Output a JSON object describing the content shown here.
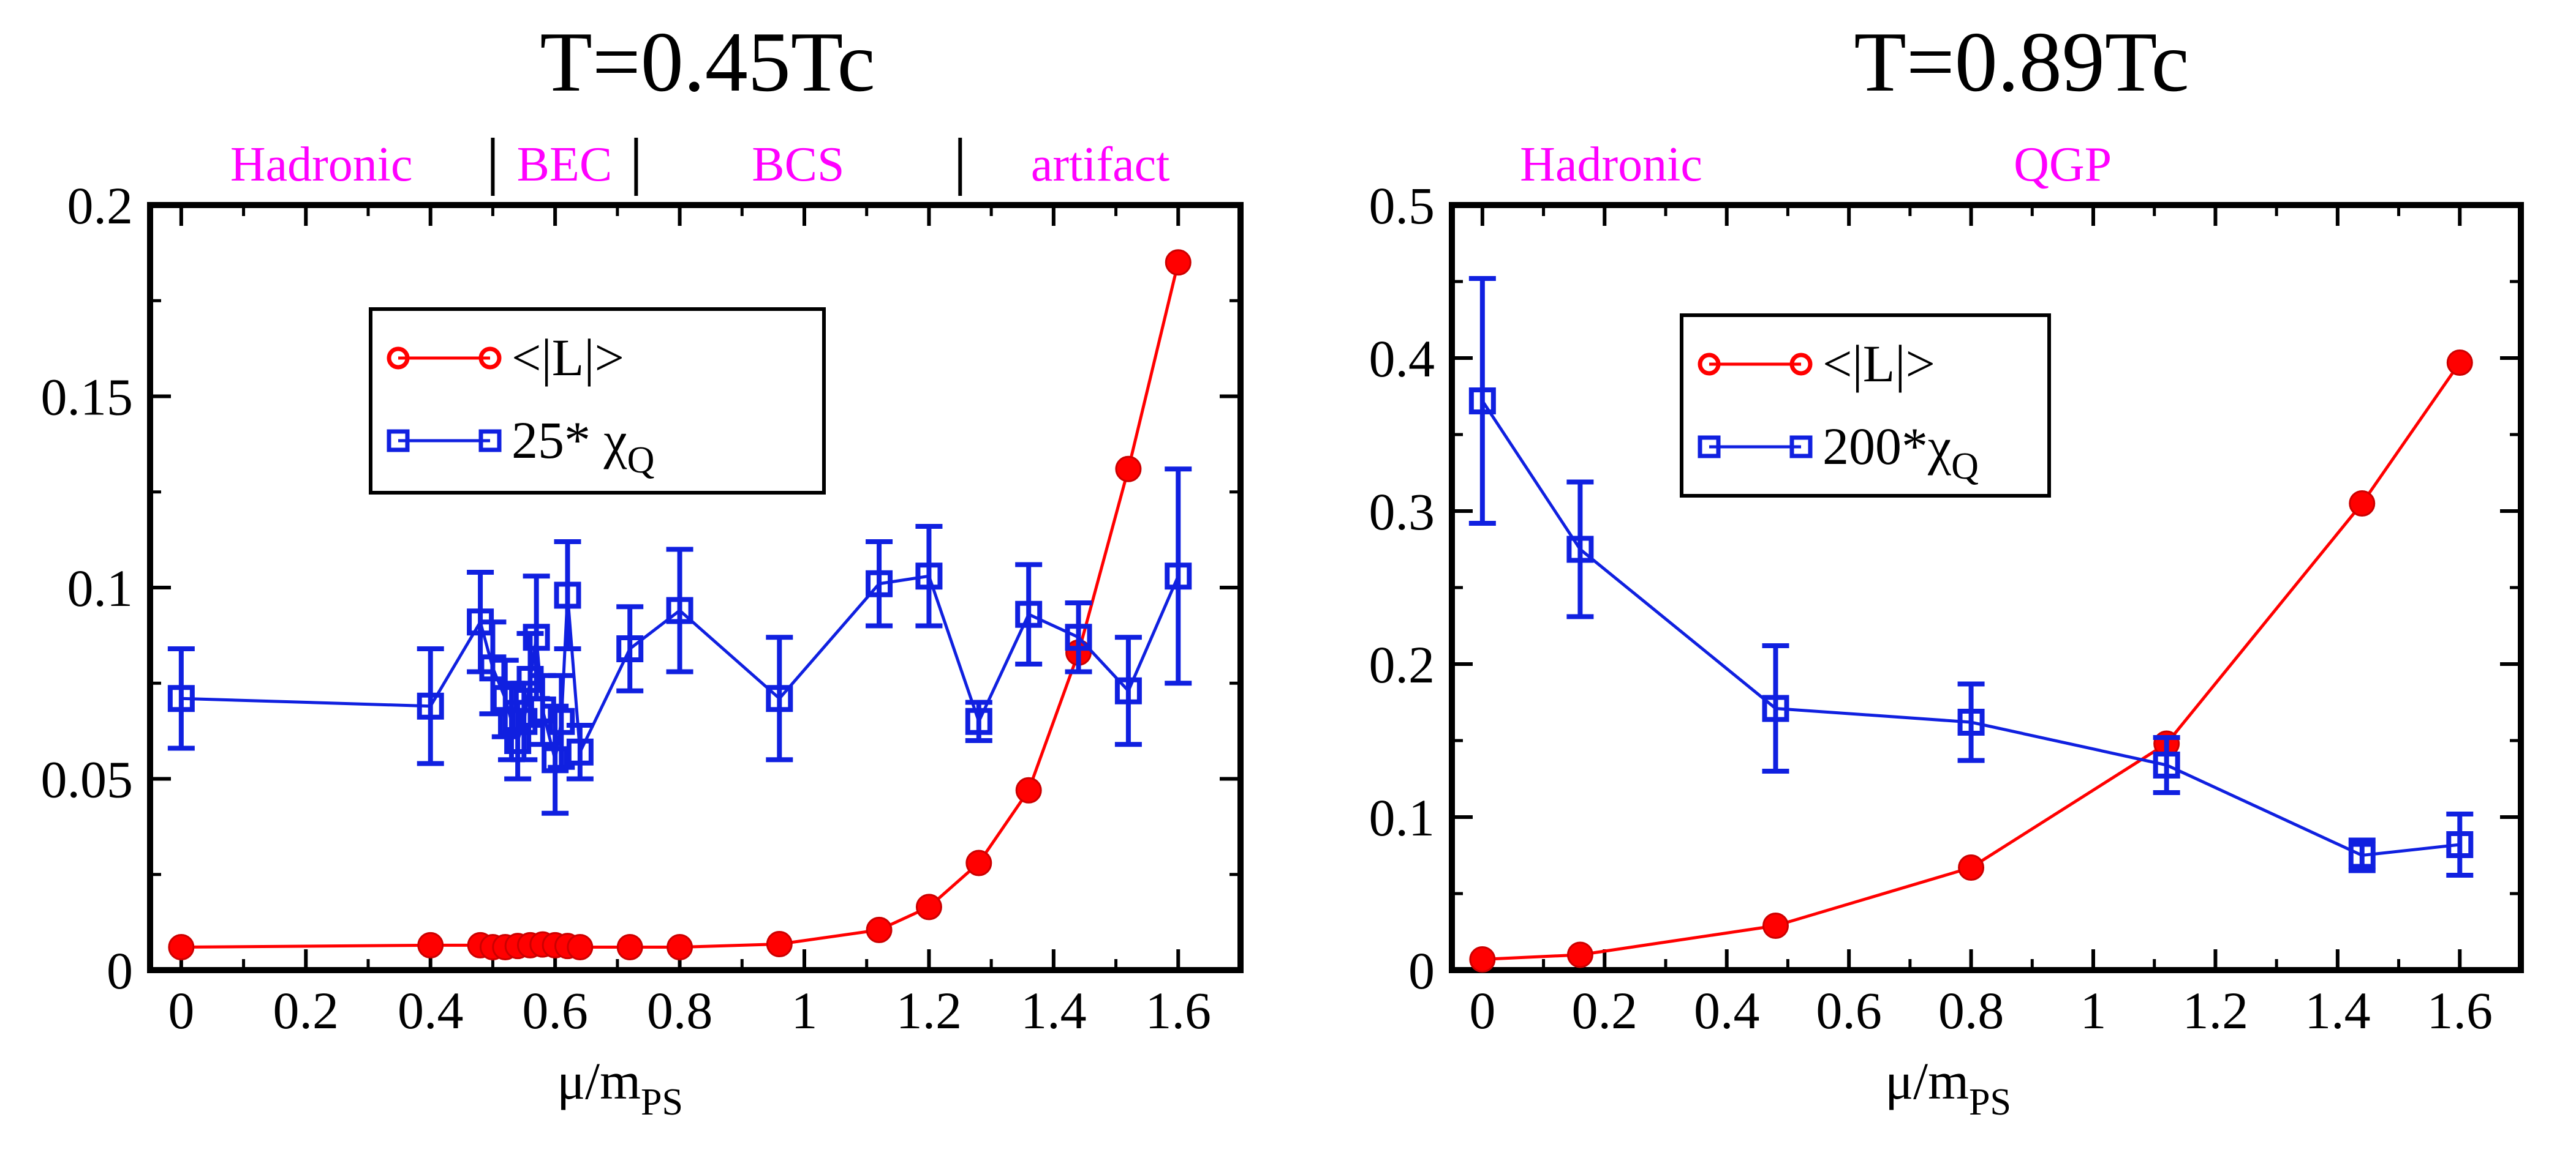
{
  "colors": {
    "L_series": "#ff0000",
    "chi_series": "#1020e0",
    "region_label": "#ff00ff",
    "axis": "#000000"
  },
  "chart_data": [
    {
      "type": "line",
      "title": "T=0.45Tc",
      "xlabel_main": "μ/m",
      "xlabel_sub": "PS",
      "ylabel": "",
      "xlim": [
        -0.05,
        1.7
      ],
      "ylim": [
        0,
        0.2
      ],
      "xticks": [
        0,
        0.2,
        0.4,
        0.6,
        0.8,
        1,
        1.2,
        1.4,
        1.6
      ],
      "xtick_labels": [
        "0",
        "0.2",
        "0.4",
        "0.6",
        "0.8",
        "1",
        "1.2",
        "1.4",
        "1.6"
      ],
      "yticks": [
        0,
        0.05,
        0.1,
        0.15,
        0.2
      ],
      "ytick_labels": [
        "0",
        "0.05",
        "0.1",
        "0.15",
        "0.2"
      ],
      "regions": [
        {
          "label": "Hadronic",
          "start": -0.05,
          "end": 0.5
        },
        {
          "label": "BEC",
          "start": 0.5,
          "end": 0.73
        },
        {
          "label": "BCS",
          "start": 0.73,
          "end": 1.25
        },
        {
          "label": "artifact",
          "start": 1.25,
          "end": 1.7
        }
      ],
      "region_dividers": [
        0.5,
        0.73,
        1.25
      ],
      "legend": {
        "position": "upper-left",
        "entries": [
          {
            "series": 0,
            "label": "<|L|>",
            "sub": ""
          },
          {
            "series": 1,
            "label": "25* χ",
            "sub": "Q"
          }
        ]
      },
      "series": [
        {
          "name": "<|L|>",
          "marker": "circle",
          "x": [
            0,
            0.4,
            0.48,
            0.5,
            0.52,
            0.54,
            0.56,
            0.58,
            0.6,
            0.62,
            0.64,
            0.72,
            0.8,
            0.96,
            1.12,
            1.2,
            1.28,
            1.36,
            1.44,
            1.52,
            1.6
          ],
          "values": [
            0.006,
            0.0065,
            0.0065,
            0.006,
            0.006,
            0.0063,
            0.0065,
            0.0067,
            0.0065,
            0.0063,
            0.006,
            0.006,
            0.006,
            0.0068,
            0.0105,
            0.0165,
            0.028,
            0.047,
            0.083,
            0.131,
            0.185
          ]
        },
        {
          "name": "25* χQ",
          "marker": "square",
          "x": [
            0,
            0.4,
            0.48,
            0.5,
            0.52,
            0.53,
            0.54,
            0.55,
            0.56,
            0.57,
            0.58,
            0.6,
            0.61,
            0.62,
            0.64,
            0.72,
            0.8,
            0.96,
            1.12,
            1.2,
            1.28,
            1.36,
            1.44,
            1.52,
            1.6
          ],
          "values": [
            0.071,
            0.069,
            0.091,
            0.079,
            0.071,
            0.065,
            0.06,
            0.065,
            0.076,
            0.087,
            0.068,
            0.055,
            0.065,
            0.098,
            0.057,
            0.084,
            0.094,
            0.071,
            0.101,
            0.103,
            0.065,
            0.093,
            0.087,
            0.073,
            0.103
          ],
          "errors": [
            0.013,
            0.015,
            0.013,
            0.012,
            0.01,
            0.01,
            0.01,
            0.01,
            0.012,
            0.016,
            0.009,
            0.014,
            0.012,
            0.014,
            0.007,
            0.011,
            0.016,
            0.016,
            0.011,
            0.013,
            0.005,
            0.013,
            0.009,
            0.014,
            0.028
          ]
        }
      ]
    },
    {
      "type": "line",
      "title": "T=0.89Tc",
      "xlabel_main": "μ/m",
      "xlabel_sub": "PS",
      "ylabel": "",
      "xlim": [
        -0.05,
        1.7
      ],
      "ylim": [
        0,
        0.5
      ],
      "xticks": [
        0,
        0.2,
        0.4,
        0.6,
        0.8,
        1,
        1.2,
        1.4,
        1.6
      ],
      "xtick_labels": [
        "0",
        "0.2",
        "0.4",
        "0.6",
        "0.8",
        "1",
        "1.2",
        "1.4",
        "1.6"
      ],
      "yticks": [
        0,
        0.1,
        0.2,
        0.3,
        0.4,
        0.5
      ],
      "ytick_labels": [
        "0",
        "0.1",
        "0.2",
        "0.3",
        "0.4",
        "0.5"
      ],
      "regions": [
        {
          "label": "Hadronic",
          "start": -0.05,
          "end": 0.4
        },
        {
          "label": "QGP",
          "start": 0.4,
          "end": 1.7
        }
      ],
      "region_dividers": [],
      "legend": {
        "position": "upper-center",
        "entries": [
          {
            "series": 0,
            "label": "<|L|>",
            "sub": ""
          },
          {
            "series": 1,
            "label": "200*χ",
            "sub": "Q"
          }
        ]
      },
      "series": [
        {
          "name": "<|L|>",
          "marker": "circle",
          "x": [
            0,
            0.16,
            0.48,
            0.8,
            1.12,
            1.44,
            1.6
          ],
          "values": [
            0.007,
            0.01,
            0.029,
            0.067,
            0.148,
            0.305,
            0.397
          ]
        },
        {
          "name": "200*χQ",
          "marker": "square",
          "x": [
            0,
            0.16,
            0.48,
            0.8,
            1.12,
            1.44,
            1.6
          ],
          "values": [
            0.372,
            0.275,
            0.171,
            0.162,
            0.134,
            0.075,
            0.082
          ],
          "errors": [
            0.08,
            0.044,
            0.041,
            0.025,
            0.018,
            0.01,
            0.02
          ]
        }
      ]
    }
  ]
}
